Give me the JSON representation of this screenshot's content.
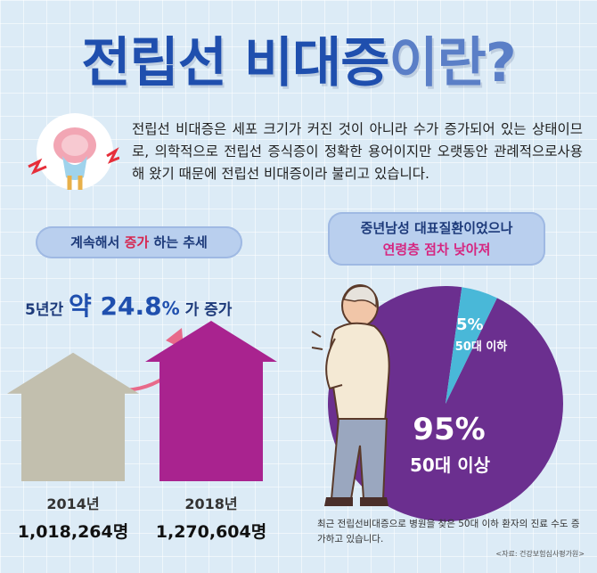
{
  "title": {
    "main": "전립선 비대증",
    "accent": "이란?"
  },
  "intro": {
    "icon": "prostate-pain-icon",
    "text": "전립선 비대증은 세포 크기가 커진 것이 아니라 수가 증가되어 있는 상태이므로, 의학적으로 전립선 증식증이 정확한 용어이지만 오랫동안 관례적으로사용해 왔기 때문에 전립선 비대증이라 불리고 있습니다."
  },
  "trend": {
    "pill_prefix": "계속해서 ",
    "pill_highlight": "증가",
    "pill_suffix": " 하는 추세",
    "growth_prefix": "5년간 ",
    "growth_about": "약 ",
    "growth_value": "24.8",
    "growth_pct": "%",
    "growth_suffix": " 가 증가"
  },
  "chart_data": [
    {
      "type": "bar",
      "categories": [
        "2014년",
        "2018년"
      ],
      "values": [
        1018264,
        1270604
      ],
      "value_labels": [
        "1,018,264명",
        "1,270,604명"
      ],
      "colors": [
        "#c2bfae",
        "#a9238f"
      ]
    },
    {
      "type": "pie",
      "slices": [
        {
          "percent_label": "5%",
          "label": "50대 이하",
          "value": 5,
          "color": "#49b8d8"
        },
        {
          "percent_label": "95%",
          "label": "50대 이상",
          "value": 95,
          "color": "#6b2f8f"
        }
      ]
    }
  ],
  "age": {
    "pill_line1": "중년남성 대표질환이었으나",
    "pill_line2": "연령층 점차 낮아져",
    "footnote": "최근 전립선비대증으로 병원을 찾은 50대 이하 환자의 진료 수도 증가하고 있습니다.",
    "source": "<자료: 건강보험심사평가원>"
  }
}
